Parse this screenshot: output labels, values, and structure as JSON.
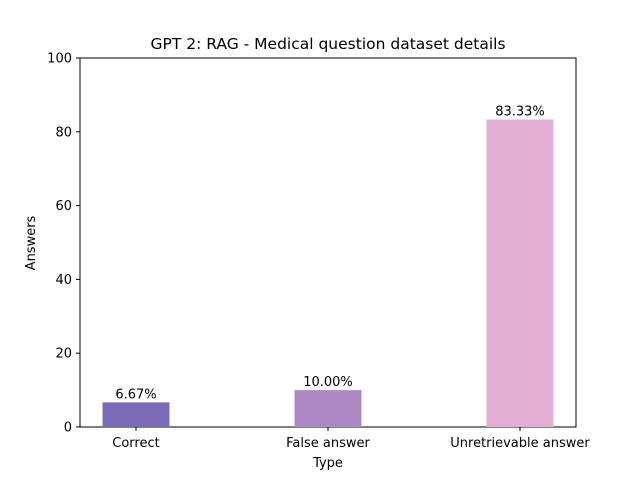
{
  "chart_data": {
    "type": "bar",
    "title": "GPT 2: RAG - Medical question dataset details",
    "xlabel": "Type",
    "ylabel": "Answers",
    "categories": [
      "Correct",
      "False answer",
      "Unretrievable answer"
    ],
    "values": [
      6.67,
      10.0,
      83.33
    ],
    "data_labels": [
      "6.67%",
      "10.00%",
      "83.33%"
    ],
    "colors": [
      "#7b6bb8",
      "#af88c6",
      "#e2aed3"
    ],
    "ylim": [
      0,
      100
    ],
    "yticks": [
      0,
      20,
      40,
      60,
      80,
      100
    ],
    "grid": false,
    "legend": "none"
  }
}
